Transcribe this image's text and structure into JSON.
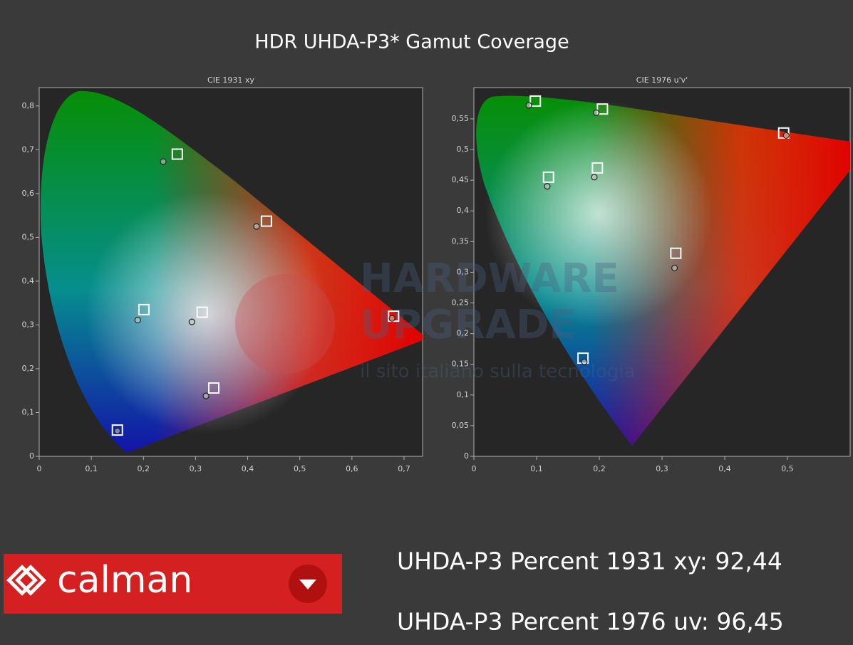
{
  "title": "HDR UHDA-P3* Gamut Coverage",
  "chart_data": [
    {
      "type": "scatter",
      "title": "CIE 1931 xy",
      "xlim": [
        0,
        0.7356
      ],
      "ylim": [
        0,
        0.842
      ],
      "xticks": [
        0,
        {
          "value": 0.1,
          "label": "0,1"
        },
        {
          "value": 0.2,
          "label": "0,2"
        },
        {
          "value": 0.3,
          "label": "0,3"
        },
        {
          "value": 0.4,
          "label": "0,4"
        },
        {
          "value": 0.5,
          "label": "0,5"
        },
        {
          "value": 0.6,
          "label": "0,6"
        },
        {
          "value": 0.7,
          "label": "0,7"
        }
      ],
      "yticks": [
        0,
        {
          "value": 0.1,
          "label": "0,1"
        },
        {
          "value": 0.2,
          "label": "0,2"
        },
        {
          "value": 0.3,
          "label": "0,3"
        },
        {
          "value": 0.4,
          "label": "0,4"
        },
        {
          "value": 0.5,
          "label": "0,5"
        },
        {
          "value": 0.6,
          "label": "0,6"
        },
        {
          "value": 0.7,
          "label": "0,7"
        },
        {
          "value": 0.8,
          "label": "0,8"
        }
      ],
      "series": [
        {
          "marker": "square",
          "color": "#ffffff",
          "x": [
            0.68,
            0.265,
            0.15,
            0.3127,
            0.201,
            0.335,
            0.436
          ],
          "values": [
            0.32,
            0.69,
            0.06,
            0.329,
            0.335,
            0.156,
            0.537
          ]
        },
        {
          "marker": "circle",
          "color": "#c8c8c8",
          "x": [
            0.677,
            0.238,
            0.15,
            0.293,
            0.189,
            0.32,
            0.417
          ],
          "values": [
            0.315,
            0.673,
            0.058,
            0.307,
            0.311,
            0.138,
            0.525
          ]
        }
      ]
    },
    {
      "type": "scatter",
      "title": "CIE 1976 u'v'",
      "xlim": [
        0,
        0.6
      ],
      "ylim": [
        0,
        0.601
      ],
      "xticks": [
        0,
        {
          "value": 0.1,
          "label": "0,1"
        },
        {
          "value": 0.2,
          "label": "0,2"
        },
        {
          "value": 0.3,
          "label": "0,3"
        },
        {
          "value": 0.4,
          "label": "0,4"
        },
        {
          "value": 0.5,
          "label": "0,5"
        }
      ],
      "yticks": [
        0,
        {
          "value": 0.05,
          "label": "0,05"
        },
        {
          "value": 0.1,
          "label": "0,1"
        },
        {
          "value": 0.15,
          "label": "0,15"
        },
        {
          "value": 0.2,
          "label": "0,2"
        },
        {
          "value": 0.25,
          "label": "0,25"
        },
        {
          "value": 0.3,
          "label": "0,3"
        },
        {
          "value": 0.35,
          "label": "0,35"
        },
        {
          "value": 0.4,
          "label": "0,4"
        },
        {
          "value": 0.45,
          "label": "0,45"
        },
        {
          "value": 0.5,
          "label": "0,5"
        },
        {
          "value": 0.55,
          "label": "0,55"
        }
      ],
      "series": [
        {
          "marker": "square",
          "color": "#ffffff",
          "x": [
            0.494,
            0.098,
            0.174,
            0.197,
            0.119,
            0.322,
            0.205
          ],
          "values": [
            0.527,
            0.579,
            0.16,
            0.47,
            0.455,
            0.331,
            0.566
          ]
        },
        {
          "marker": "circle",
          "color": "#c8c8c8",
          "x": [
            0.498,
            0.0875,
            0.176,
            0.192,
            0.117,
            0.32,
            0.195
          ],
          "values": [
            0.523,
            0.572,
            0.154,
            0.455,
            0.44,
            0.307,
            0.56
          ]
        }
      ]
    }
  ],
  "watermark": [
    "HARDWARE",
    "UPGRADE",
    "il sito italiano sulla tecnologia"
  ],
  "logo": "calman",
  "stats": [
    "UHDA-P3 Percent 1931 xy: 92,44",
    "UHDA-P3 Percent 1976 uv: 96,45"
  ]
}
